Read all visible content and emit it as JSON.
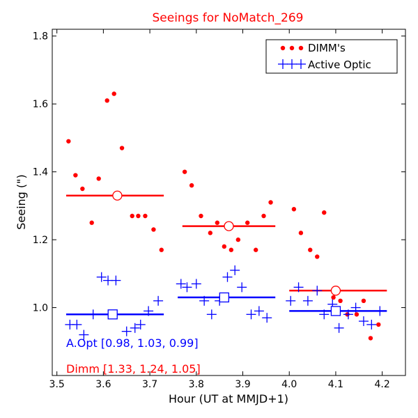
{
  "chart_data": {
    "type": "scatter",
    "title": "Seeings for NoMatch_269",
    "xlabel": "Hour (UT at MMJD+1)",
    "ylabel": "Seeing (\")",
    "xlim": [
      3.49,
      4.25
    ],
    "ylim": [
      0.8,
      1.82
    ],
    "xticks": [
      3.5,
      3.6,
      3.7,
      3.8,
      3.9,
      4.0,
      4.1,
      4.2
    ],
    "xtick_labels": [
      "3.5",
      "3.6",
      "3.7",
      "3.8",
      "3.9",
      "4.0",
      "4.1",
      "4.2"
    ],
    "yticks": [
      1.0,
      1.2,
      1.4,
      1.6,
      1.8
    ],
    "ytick_labels": [
      "1.0",
      "1.2",
      "1.4",
      "1.6",
      "1.8"
    ],
    "legend_position": "top-right",
    "series": [
      {
        "name": "DIMM's",
        "color": "#ff0000",
        "marker": "dot",
        "x": [
          3.525,
          3.54,
          3.555,
          3.575,
          3.59,
          3.608,
          3.623,
          3.64,
          3.662,
          3.675,
          3.69,
          3.708,
          3.725,
          3.775,
          3.79,
          3.81,
          3.83,
          3.845,
          3.86,
          3.875,
          3.89,
          3.91,
          3.928,
          3.945,
          3.96,
          4.01,
          4.025,
          4.045,
          4.06,
          4.075,
          4.095,
          4.11,
          4.125,
          4.145,
          4.16,
          4.175,
          4.192
        ],
        "y": [
          1.49,
          1.39,
          1.35,
          1.25,
          1.38,
          1.61,
          1.63,
          1.47,
          1.27,
          1.27,
          1.27,
          1.23,
          1.17,
          1.4,
          1.36,
          1.27,
          1.22,
          1.25,
          1.18,
          1.17,
          1.2,
          1.25,
          1.17,
          1.27,
          1.31,
          1.29,
          1.22,
          1.17,
          1.15,
          1.28,
          1.03,
          1.02,
          0.98,
          0.98,
          1.02,
          0.91,
          0.95
        ]
      },
      {
        "name": "Active Optic",
        "color": "#0000ff",
        "marker": "plus",
        "x": [
          3.528,
          3.543,
          3.558,
          3.578,
          3.596,
          3.61,
          3.627,
          3.65,
          3.668,
          3.68,
          3.697,
          3.718,
          3.767,
          3.78,
          3.8,
          3.817,
          3.833,
          3.85,
          3.867,
          3.883,
          3.898,
          3.918,
          3.935,
          3.952,
          4.003,
          4.02,
          4.04,
          4.06,
          4.075,
          4.093,
          4.107,
          4.127,
          4.143,
          4.16,
          4.177,
          4.195
        ],
        "y": [
          0.95,
          0.95,
          0.92,
          0.98,
          1.09,
          1.08,
          1.08,
          0.93,
          0.94,
          0.95,
          0.99,
          1.02,
          1.07,
          1.06,
          1.07,
          1.02,
          0.98,
          1.02,
          1.09,
          1.11,
          1.06,
          0.98,
          0.99,
          0.97,
          1.02,
          1.06,
          1.02,
          1.05,
          0.98,
          1.01,
          0.94,
          0.98,
          1.0,
          0.96,
          0.95,
          0.99
        ]
      }
    ],
    "averages": [
      {
        "name": "Dimm",
        "color": "#ff0000",
        "marker": "circle",
        "segments": [
          {
            "x_start": 3.52,
            "x_end": 3.73,
            "y": 1.33,
            "marker_x": 3.63
          },
          {
            "x_start": 3.77,
            "x_end": 3.97,
            "y": 1.24,
            "marker_x": 3.87
          },
          {
            "x_start": 4.0,
            "x_end": 4.21,
            "y": 1.05,
            "marker_x": 4.1
          }
        ]
      },
      {
        "name": "A.Opt",
        "color": "#0000ff",
        "marker": "square",
        "segments": [
          {
            "x_start": 3.52,
            "x_end": 3.73,
            "y": 0.98,
            "marker_x": 3.62
          },
          {
            "x_start": 3.76,
            "x_end": 3.97,
            "y": 1.03,
            "marker_x": 3.86
          },
          {
            "x_start": 4.0,
            "x_end": 4.21,
            "y": 0.99,
            "marker_x": 4.1
          }
        ]
      }
    ],
    "annotations": [
      {
        "text": "A.Opt [0.98, 1.03, 0.99]",
        "color": "#0000ff"
      },
      {
        "text": "Dimm [1.33, 1.24, 1.05]",
        "color": "#ff0000"
      }
    ]
  }
}
